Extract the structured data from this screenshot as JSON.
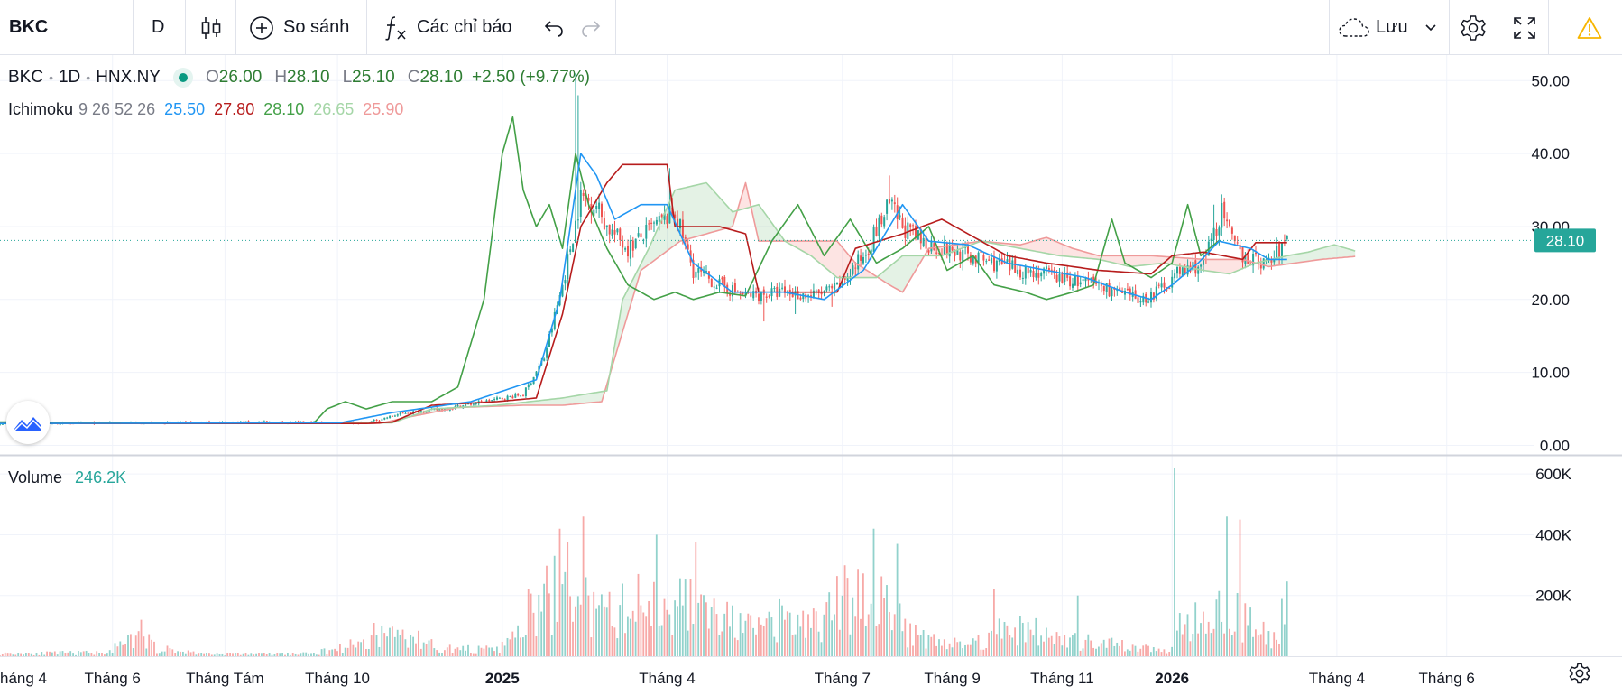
{
  "toolbar": {
    "symbol": "BKC",
    "interval": "D",
    "compare_label": "So sánh",
    "indicators_label": "Các chỉ báo",
    "save_label": "Lưu"
  },
  "legend": {
    "symbol": "BKC",
    "interval": "1D",
    "exchange": "HNX.NY",
    "open_key": "O",
    "open": "26.00",
    "high_key": "H",
    "high": "28.10",
    "low_key": "L",
    "low": "25.10",
    "close_key": "C",
    "close": "28.10",
    "change": "+2.50 (+9.77%)"
  },
  "indicator": {
    "name": "Ichimoku",
    "params": "9 26 52 26",
    "conversion": "25.50",
    "base": "27.80",
    "lagging": "28.10",
    "lead1": "26.65",
    "lead2": "25.90"
  },
  "volume_legend": {
    "name": "Volume",
    "value": "246.2K"
  },
  "colors": {
    "conversion": "#2196f3",
    "base": "#b71c1c",
    "lagging": "#43a047",
    "lead1": "#a5d6a7",
    "lead2": "#ef9a9a",
    "up": "#26a69a",
    "down": "#ef5350",
    "price_badge": "#26a69a"
  },
  "chart_data": {
    "type": "candlestick",
    "symbol": "BKC",
    "interval": "1D",
    "last_price": "28.10",
    "price_axis": {
      "ticks": [
        0,
        10,
        20,
        30,
        40,
        50
      ],
      "tick_labels": [
        "0.00",
        "10.00",
        "20.00",
        "30.00",
        "40.00",
        "50.00"
      ],
      "range": [
        -1.3,
        53.5
      ]
    },
    "volume_axis": {
      "ticks": [
        200000,
        400000,
        600000
      ],
      "tick_labels": [
        "200K",
        "400K",
        "600K"
      ],
      "range": [
        0,
        660000
      ]
    },
    "time_axis": {
      "labels": [
        "háng 4",
        "Tháng 6",
        "Tháng Tám",
        "Tháng 10",
        "2025",
        "Tháng 4",
        "Tháng 7",
        "Tháng 9",
        "Tháng 11",
        "2026",
        "Tháng 4",
        "Tháng 6"
      ],
      "bold": [
        false,
        false,
        false,
        false,
        true,
        false,
        false,
        false,
        false,
        true,
        false,
        false
      ],
      "index": [
        0,
        43,
        86,
        129,
        192,
        255,
        322,
        364,
        406,
        448,
        511,
        553
      ]
    },
    "last_index": 492,
    "future_bars": 26,
    "price_path": [
      [
        0,
        3.0
      ],
      [
        100,
        3.2
      ],
      [
        140,
        3.1
      ],
      [
        155,
        4.5
      ],
      [
        170,
        5.0
      ],
      [
        185,
        6.0
      ],
      [
        200,
        7.0
      ],
      [
        208,
        12.0
      ],
      [
        215,
        22.0
      ],
      [
        222,
        34.0
      ],
      [
        228,
        33.0
      ],
      [
        232,
        30.0
      ],
      [
        240,
        27.0
      ],
      [
        250,
        30.0
      ],
      [
        258,
        32.0
      ],
      [
        265,
        24.0
      ],
      [
        275,
        22.0
      ],
      [
        285,
        20.5
      ],
      [
        300,
        21.0
      ],
      [
        310,
        20.5
      ],
      [
        320,
        21.5
      ],
      [
        330,
        26.0
      ],
      [
        340,
        33.0
      ],
      [
        345,
        30.0
      ],
      [
        352,
        28.0
      ],
      [
        360,
        27.0
      ],
      [
        370,
        26.0
      ],
      [
        380,
        25.0
      ],
      [
        390,
        24.0
      ],
      [
        400,
        23.5
      ],
      [
        410,
        22.5
      ],
      [
        420,
        22.0
      ],
      [
        430,
        20.5
      ],
      [
        437,
        20.0
      ],
      [
        442,
        21.0
      ],
      [
        450,
        23.5
      ],
      [
        460,
        25.0
      ],
      [
        467,
        32.0
      ],
      [
        472,
        27.0
      ],
      [
        478,
        25.5
      ],
      [
        485,
        25.0
      ],
      [
        492,
        28.1
      ]
    ],
    "spikes": [
      [
        220,
        51.0
      ],
      [
        221,
        48.0
      ],
      [
        256,
        38.0
      ],
      [
        340,
        37.0
      ],
      [
        464,
        33.0
      ],
      [
        292,
        17.0
      ],
      [
        304,
        18.0
      ],
      [
        318,
        19.0
      ]
    ],
    "ichimoku": {
      "conversion_path": [
        [
          0,
          3.0
        ],
        [
          130,
          3.1
        ],
        [
          150,
          4.5
        ],
        [
          180,
          6.0
        ],
        [
          205,
          9.0
        ],
        [
          214,
          20.0
        ],
        [
          222,
          40.0
        ],
        [
          228,
          37.0
        ],
        [
          235,
          31.0
        ],
        [
          245,
          33.0
        ],
        [
          255,
          33.0
        ],
        [
          265,
          25.0
        ],
        [
          280,
          21.0
        ],
        [
          300,
          21.0
        ],
        [
          315,
          20.0
        ],
        [
          330,
          24.0
        ],
        [
          345,
          33.0
        ],
        [
          355,
          28.0
        ],
        [
          370,
          27.5
        ],
        [
          385,
          25.0
        ],
        [
          400,
          24.0
        ],
        [
          415,
          23.0
        ],
        [
          430,
          21.0
        ],
        [
          440,
          20.0
        ],
        [
          448,
          22.0
        ],
        [
          458,
          25.0
        ],
        [
          466,
          28.0
        ],
        [
          478,
          27.0
        ],
        [
          485,
          25.5
        ],
        [
          492,
          25.5
        ]
      ],
      "base_path": [
        [
          0,
          3.0
        ],
        [
          140,
          3.0
        ],
        [
          150,
          3.2
        ],
        [
          165,
          5.5
        ],
        [
          190,
          6.0
        ],
        [
          205,
          6.5
        ],
        [
          215,
          18.0
        ],
        [
          222,
          30.0
        ],
        [
          232,
          36.0
        ],
        [
          238,
          38.5
        ],
        [
          255,
          38.5
        ],
        [
          258,
          30.0
        ],
        [
          275,
          30.0
        ],
        [
          285,
          29.0
        ],
        [
          290,
          21.0
        ],
        [
          320,
          21.0
        ],
        [
          327,
          27.0
        ],
        [
          345,
          29.0
        ],
        [
          360,
          31.0
        ],
        [
          370,
          29.0
        ],
        [
          385,
          26.0
        ],
        [
          400,
          25.0
        ],
        [
          420,
          24.0
        ],
        [
          440,
          23.5
        ],
        [
          448,
          26.0
        ],
        [
          460,
          26.5
        ],
        [
          475,
          25.5
        ],
        [
          480,
          27.8
        ],
        [
          492,
          27.8
        ]
      ],
      "lagging_path": [
        [
          0,
          3.2
        ],
        [
          120,
          3.1
        ],
        [
          125,
          5.0
        ],
        [
          132,
          6.0
        ],
        [
          140,
          5.0
        ],
        [
          150,
          6.0
        ],
        [
          165,
          6.0
        ],
        [
          175,
          8.0
        ],
        [
          185,
          20.0
        ],
        [
          192,
          40.0
        ],
        [
          196,
          45.0
        ],
        [
          200,
          35.0
        ],
        [
          205,
          30.0
        ],
        [
          210,
          33.0
        ],
        [
          215,
          27.0
        ],
        [
          220,
          40.0
        ],
        [
          225,
          33.0
        ],
        [
          232,
          27.0
        ],
        [
          240,
          22.0
        ],
        [
          250,
          20.0
        ],
        [
          258,
          21.0
        ],
        [
          265,
          20.0
        ],
        [
          275,
          21.0
        ],
        [
          285,
          20.5
        ],
        [
          295,
          28.0
        ],
        [
          305,
          33.0
        ],
        [
          315,
          26.0
        ],
        [
          325,
          31.0
        ],
        [
          335,
          25.0
        ],
        [
          345,
          27.0
        ],
        [
          355,
          30.0
        ],
        [
          362,
          24.0
        ],
        [
          372,
          26.0
        ],
        [
          380,
          22.0
        ],
        [
          392,
          21.0
        ],
        [
          400,
          20.0
        ],
        [
          410,
          21.0
        ],
        [
          418,
          22.0
        ],
        [
          425,
          31.0
        ],
        [
          430,
          25.0
        ],
        [
          440,
          23.0
        ],
        [
          448,
          25.0
        ],
        [
          454,
          33.0
        ],
        [
          459,
          26.0
        ],
        [
          466,
          28.1
        ]
      ],
      "lead1_path": [
        [
          0,
          3.1
        ],
        [
          150,
          3.1
        ],
        [
          165,
          5.0
        ],
        [
          190,
          5.5
        ],
        [
          215,
          6.5
        ],
        [
          232,
          7.5
        ],
        [
          238,
          20.0
        ],
        [
          248,
          27.0
        ],
        [
          258,
          35.0
        ],
        [
          270,
          36.0
        ],
        [
          280,
          32.0
        ],
        [
          290,
          33.0
        ],
        [
          300,
          28.0
        ],
        [
          310,
          26.0
        ],
        [
          320,
          23.0
        ],
        [
          335,
          23.0
        ],
        [
          345,
          26.0
        ],
        [
          360,
          26.0
        ],
        [
          375,
          28.0
        ],
        [
          390,
          27.0
        ],
        [
          405,
          26.0
        ],
        [
          420,
          25.5
        ],
        [
          432,
          24.5
        ],
        [
          445,
          25.0
        ],
        [
          460,
          24.0
        ],
        [
          470,
          23.5
        ],
        [
          480,
          25.0
        ],
        [
          492,
          26.0
        ],
        [
          500,
          26.5
        ],
        [
          510,
          27.5
        ],
        [
          518,
          26.65
        ]
      ],
      "lead2_path": [
        [
          0,
          3.0
        ],
        [
          145,
          3.0
        ],
        [
          155,
          3.8
        ],
        [
          175,
          5.2
        ],
        [
          200,
          5.5
        ],
        [
          215,
          5.5
        ],
        [
          230,
          6.0
        ],
        [
          245,
          24.0
        ],
        [
          260,
          28.0
        ],
        [
          280,
          30.0
        ],
        [
          285,
          36.0
        ],
        [
          290,
          28.0
        ],
        [
          310,
          28.0
        ],
        [
          320,
          28.0
        ],
        [
          327,
          25.0
        ],
        [
          340,
          22.0
        ],
        [
          345,
          21.0
        ],
        [
          355,
          27.0
        ],
        [
          375,
          28.0
        ],
        [
          390,
          27.5
        ],
        [
          400,
          28.5
        ],
        [
          410,
          27.0
        ],
        [
          420,
          26.0
        ],
        [
          440,
          26.0
        ],
        [
          460,
          25.5
        ],
        [
          475,
          25.5
        ],
        [
          485,
          24.5
        ],
        [
          495,
          25.0
        ],
        [
          505,
          25.5
        ],
        [
          518,
          25.9
        ]
      ]
    },
    "volume_profile": [
      [
        0,
        10000
      ],
      [
        40,
        15000
      ],
      [
        55,
        80000
      ],
      [
        60,
        30000
      ],
      [
        80,
        8000
      ],
      [
        120,
        10000
      ],
      [
        140,
        60000
      ],
      [
        150,
        100000
      ],
      [
        170,
        30000
      ],
      [
        190,
        25000
      ],
      [
        195,
        60000
      ],
      [
        205,
        180000
      ],
      [
        215,
        300000
      ],
      [
        222,
        250000
      ],
      [
        228,
        150000
      ],
      [
        240,
        200000
      ],
      [
        255,
        230000
      ],
      [
        265,
        200000
      ],
      [
        275,
        150000
      ],
      [
        290,
        100000
      ],
      [
        300,
        150000
      ],
      [
        310,
        120000
      ],
      [
        320,
        200000
      ],
      [
        328,
        280000
      ],
      [
        335,
        250000
      ],
      [
        345,
        120000
      ],
      [
        360,
        60000
      ],
      [
        370,
        40000
      ],
      [
        380,
        100000
      ],
      [
        390,
        120000
      ],
      [
        400,
        80000
      ],
      [
        410,
        60000
      ],
      [
        420,
        50000
      ],
      [
        430,
        40000
      ],
      [
        440,
        30000
      ],
      [
        446,
        20000
      ],
      [
        450,
        150000
      ],
      [
        458,
        160000
      ],
      [
        466,
        220000
      ],
      [
        472,
        160000
      ],
      [
        480,
        120000
      ],
      [
        486,
        80000
      ],
      [
        492,
        200000
      ]
    ],
    "volume_spikes": [
      [
        449,
        620000
      ],
      [
        469,
        460000
      ],
      [
        474,
        450000
      ],
      [
        251,
        400000
      ],
      [
        334,
        420000
      ],
      [
        223,
        460000
      ],
      [
        214,
        420000
      ],
      [
        343,
        370000
      ],
      [
        266,
        375000
      ],
      [
        380,
        220000
      ],
      [
        492,
        246200
      ],
      [
        412,
        200000
      ],
      [
        202,
        220000
      ],
      [
        54,
        120000
      ],
      [
        143,
        110000
      ]
    ]
  }
}
